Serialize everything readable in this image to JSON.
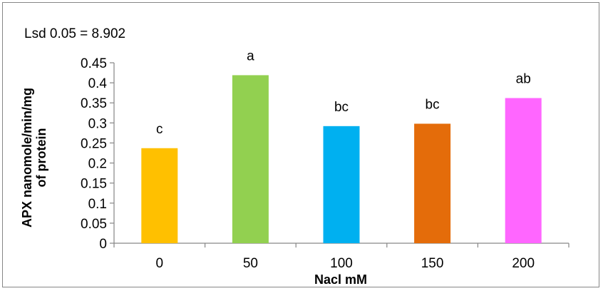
{
  "chart_data": {
    "type": "bar",
    "title": "",
    "annotation": "Lsd 0.05 = 8.902",
    "xlabel": "Nacl mM",
    "ylabel_lines": [
      "APX nanomole/min/mg",
      "of protein"
    ],
    "categories": [
      "0",
      "50",
      "100",
      "150",
      "200"
    ],
    "values": [
      0.237,
      0.419,
      0.292,
      0.298,
      0.362
    ],
    "bar_labels": [
      "c",
      "a",
      "bc",
      "bc",
      "ab"
    ],
    "colors": [
      "#FFC000",
      "#92D050",
      "#00B0F0",
      "#E46C0A",
      "#FF66FF"
    ],
    "ylim": [
      0,
      0.45
    ],
    "yticks": [
      "0",
      "0.05",
      "0.1",
      "0.15",
      "0.2",
      "0.25",
      "0.3",
      "0.35",
      "0.4",
      "0.45"
    ],
    "ytick_values": [
      0,
      0.05,
      0.1,
      0.15,
      0.2,
      0.25,
      0.3,
      0.35,
      0.4,
      0.45
    ],
    "grid": false,
    "legend": "none"
  }
}
